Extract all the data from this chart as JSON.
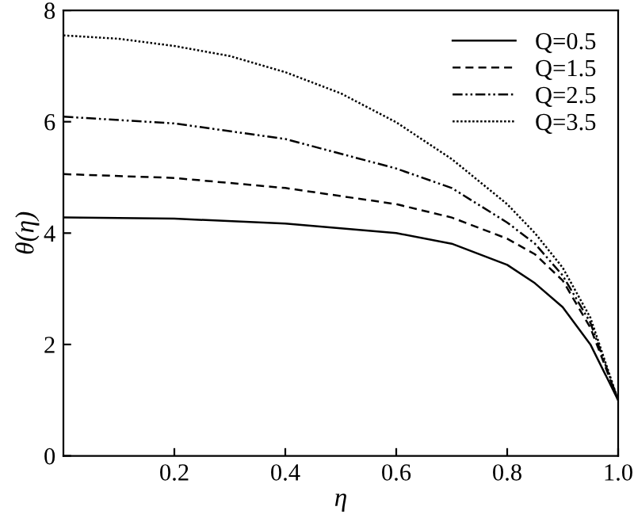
{
  "chart_data": {
    "type": "line",
    "xlabel": "η",
    "ylabel": "θ(η)",
    "xlim": [
      0,
      1.0
    ],
    "xticks": [
      0.2,
      0.4,
      0.6,
      0.8,
      {
        "value": 1.0,
        "label": "1.0"
      }
    ],
    "ylim": [
      0,
      8
    ],
    "yticks": [
      0,
      2,
      4,
      6,
      8
    ],
    "grid": false,
    "legend": "top right",
    "series": [
      {
        "name": "Q=0.5",
        "color": "#000000",
        "line_style": "solid",
        "x": [
          0,
          0.2,
          0.4,
          0.6,
          0.7,
          0.8,
          0.85,
          0.9,
          0.95,
          1.0
        ],
        "values": [
          4.28,
          4.26,
          4.17,
          4.0,
          3.81,
          3.43,
          3.1,
          2.67,
          2.0,
          1.0
        ]
      },
      {
        "name": "Q=1.5",
        "color": "#000000",
        "line_style": "dashed",
        "x": [
          0,
          0.2,
          0.4,
          0.6,
          0.7,
          0.8,
          0.85,
          0.9,
          0.95,
          1.0
        ],
        "values": [
          5.06,
          4.99,
          4.81,
          4.52,
          4.28,
          3.9,
          3.62,
          3.15,
          2.3,
          1.0
        ]
      },
      {
        "name": "Q=2.5",
        "color": "#000000",
        "line_style": "dashdot",
        "x": [
          0,
          0.2,
          0.4,
          0.6,
          0.7,
          0.8,
          0.85,
          0.9,
          0.95,
          1.0
        ],
        "values": [
          6.09,
          5.97,
          5.69,
          5.16,
          4.81,
          4.19,
          3.81,
          3.24,
          2.39,
          1.0
        ]
      },
      {
        "name": "Q=3.5",
        "color": "#000000",
        "line_style": "dotted",
        "x": [
          0,
          0.1,
          0.2,
          0.3,
          0.4,
          0.5,
          0.6,
          0.7,
          0.8,
          0.85,
          0.9,
          0.95,
          1.0
        ],
        "values": [
          7.55,
          7.49,
          7.36,
          7.18,
          6.89,
          6.51,
          5.99,
          5.33,
          4.52,
          4.0,
          3.38,
          2.48,
          1.0
        ]
      }
    ]
  }
}
